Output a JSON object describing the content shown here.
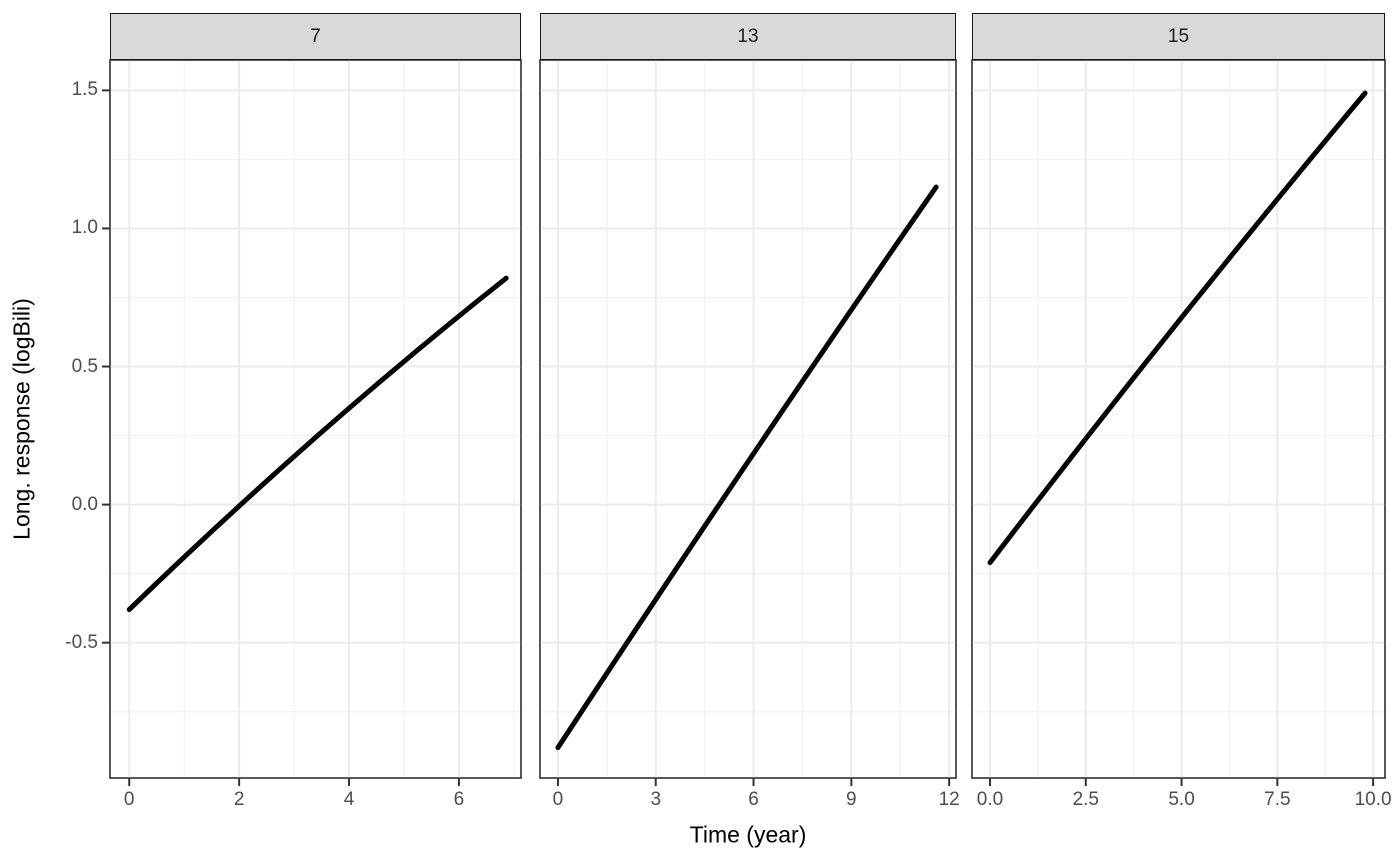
{
  "chart_data": {
    "type": "line",
    "title": "",
    "xlabel": "Time (year)",
    "ylabel": "Long. response (logBili)",
    "legend": "none",
    "grid": "on",
    "y_domain": [
      -0.99,
      1.61
    ],
    "y_ticks": [
      {
        "v": 1.5,
        "label": "1.5"
      },
      {
        "v": 1.0,
        "label": "1.0"
      },
      {
        "v": 0.5,
        "label": "0.5"
      },
      {
        "v": 0.0,
        "label": "0.0"
      },
      {
        "v": -0.5,
        "label": "-0.5"
      }
    ],
    "y_minor": [
      1.25,
      0.75,
      0.25,
      -0.25,
      -0.75
    ],
    "facets": [
      {
        "label": "7",
        "x_domain": [
          -0.35,
          7.13
        ],
        "x_ticks": [
          {
            "v": 0,
            "label": "0"
          },
          {
            "v": 2,
            "label": "2"
          },
          {
            "v": 4,
            "label": "4"
          },
          {
            "v": 6,
            "label": "6"
          }
        ],
        "x_minor": [
          1,
          3,
          5,
          7
        ],
        "line": [
          [
            0,
            -0.38
          ],
          [
            3.43,
            0.25
          ],
          [
            6.86,
            0.82
          ]
        ]
      },
      {
        "label": "13",
        "x_domain": [
          -0.55,
          12.21
        ],
        "x_ticks": [
          {
            "v": 0,
            "label": "0"
          },
          {
            "v": 3,
            "label": "3"
          },
          {
            "v": 6,
            "label": "6"
          },
          {
            "v": 9,
            "label": "9"
          },
          {
            "v": 12,
            "label": "12"
          }
        ],
        "x_minor": [
          1.5,
          4.5,
          7.5,
          10.5
        ],
        "line": [
          [
            0,
            -0.88
          ],
          [
            5.8,
            0.15
          ],
          [
            11.6,
            1.15
          ]
        ]
      },
      {
        "label": "15",
        "x_domain": [
          -0.47,
          10.31
        ],
        "x_ticks": [
          {
            "v": 0,
            "label": "0.0"
          },
          {
            "v": 2.5,
            "label": "2.5"
          },
          {
            "v": 5,
            "label": "5.0"
          },
          {
            "v": 7.5,
            "label": "7.5"
          },
          {
            "v": 10,
            "label": "10.0"
          }
        ],
        "x_minor": [
          1.25,
          3.75,
          6.25,
          8.75
        ],
        "line": [
          [
            0,
            -0.21
          ],
          [
            4.9,
            0.66
          ],
          [
            9.79,
            1.49
          ]
        ]
      }
    ],
    "colors": {
      "strip_bg": "#d9d9d9",
      "strip_border": "#1a1a1a",
      "panel_bg": "#ffffff",
      "panel_border": "#333333",
      "grid_major": "#ebebeb",
      "grid_minor": "#f2f2f2",
      "line": "#000000",
      "tick": "#333333",
      "tick_label": "#4d4d4d",
      "axis_title": "#000000"
    }
  }
}
